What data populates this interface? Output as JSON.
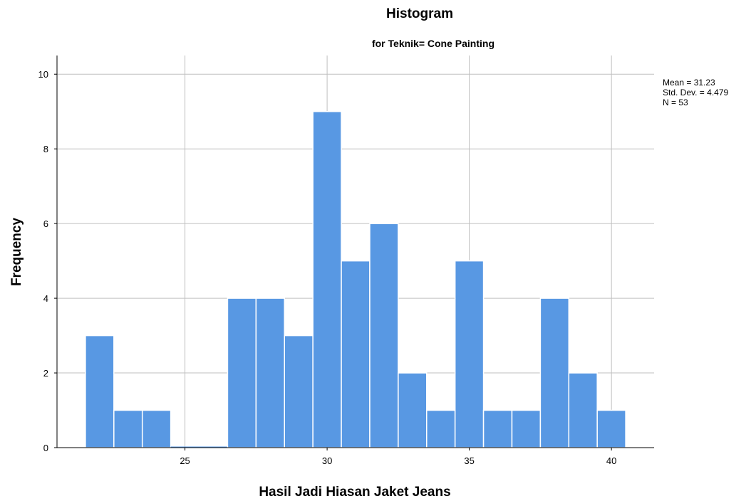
{
  "chart_data": {
    "type": "bar",
    "title": "Histogram",
    "subtitle": "for Teknik= Cone Painting",
    "xlabel": "Hasil Jadi Hiasan Jaket Jeans",
    "ylabel": "Frequency",
    "bin_width": 1,
    "bins_start": [
      22,
      23,
      24,
      25,
      26,
      27,
      28,
      29,
      30,
      31,
      32,
      33,
      34,
      35,
      36,
      37,
      38,
      39,
      40
    ],
    "values": [
      3,
      1,
      1,
      0,
      0,
      4,
      4,
      3,
      9,
      5,
      6,
      2,
      1,
      5,
      1,
      1,
      4,
      2,
      1
    ],
    "xlim": [
      20.5,
      41.5
    ],
    "ylim": [
      0,
      10.5
    ],
    "x_ticks": [
      "25",
      "30",
      "35",
      "40"
    ],
    "y_ticks": [
      "0",
      "2",
      "4",
      "6",
      "8",
      "10"
    ],
    "grid": true,
    "bar_color": "#5898e3",
    "stats": {
      "mean": "Mean = 31.23",
      "std": "Std. Dev. = 4.479",
      "n": "N = 53"
    }
  }
}
